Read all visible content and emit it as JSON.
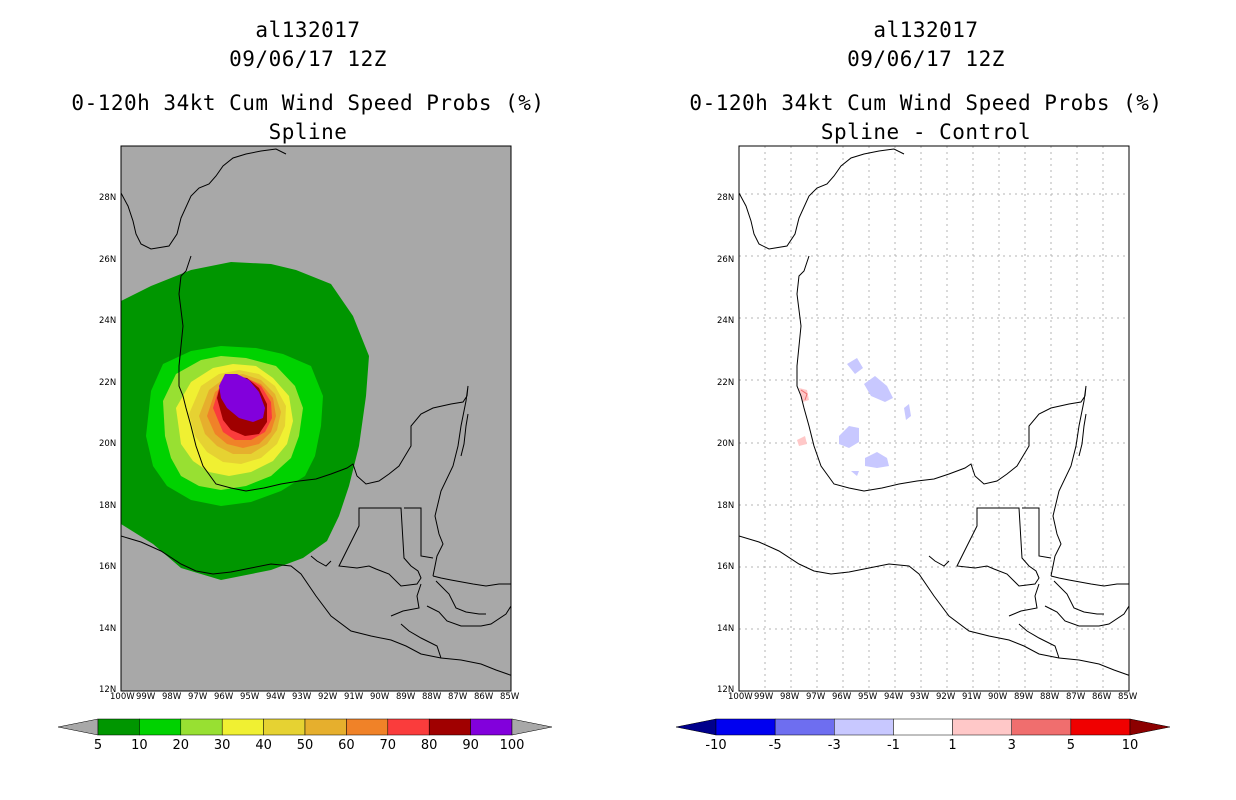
{
  "panels": [
    {
      "id": "left",
      "storm_id": "al132017",
      "datetime": "09/06/17 12Z",
      "product": "0-120h 34kt Cum Wind Speed Probs (%)",
      "subtitle": "Spline",
      "colorbar": {
        "labels": [
          "5",
          "10",
          "20",
          "30",
          "40",
          "50",
          "60",
          "70",
          "80",
          "90",
          "100"
        ],
        "colors": [
          "#a8a8a8",
          "#009600",
          "#00d200",
          "#98e032",
          "#f0f032",
          "#e6d232",
          "#e6af2d",
          "#f08228",
          "#fa3c3c",
          "#a00000",
          "#8200dc",
          "#a8a8a8"
        ]
      }
    },
    {
      "id": "right",
      "storm_id": "al132017",
      "datetime": "09/06/17 12Z",
      "product": "0-120h 34kt Cum Wind Speed Probs (%)",
      "subtitle": "Spline - Control",
      "colorbar": {
        "labels": [
          "-10",
          "-5",
          "-3",
          "-1",
          "1",
          "3",
          "5",
          "10"
        ],
        "colors": [
          "#00008c",
          "#0000f0",
          "#6e6ef0",
          "#c8c8ff",
          "#ffffff",
          "#ffc8c8",
          "#f06e6e",
          "#f00000",
          "#8c0000"
        ]
      }
    }
  ],
  "map": {
    "lon_labels": [
      "100W",
      "99W",
      "98W",
      "97W",
      "96W",
      "95W",
      "94W",
      "93W",
      "92W",
      "91W",
      "90W",
      "89W",
      "88W",
      "87W",
      "86W",
      "85W"
    ],
    "lat_labels": [
      "12N",
      "14N",
      "16N",
      "18N",
      "20N",
      "22N",
      "24N",
      "26N",
      "28N"
    ]
  }
}
